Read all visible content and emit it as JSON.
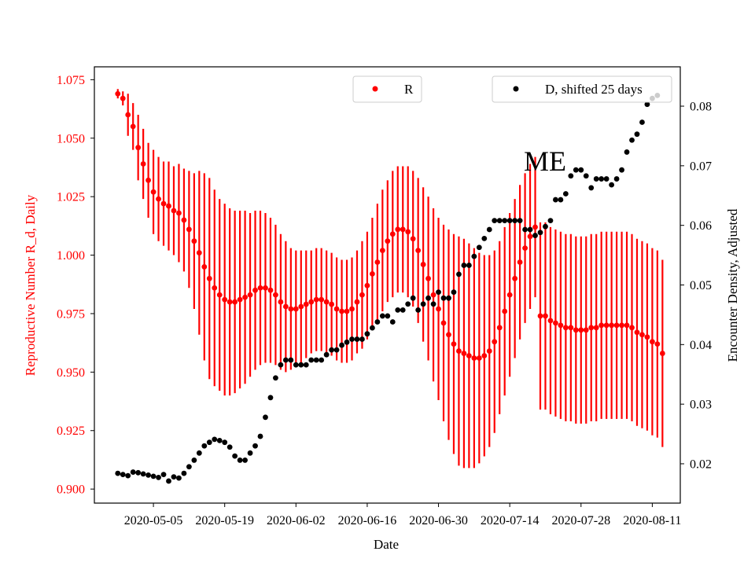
{
  "chart_data": {
    "type": "scatter",
    "xlabel": "Date",
    "ylabel_left": "Reproductive Number R_d, Daily",
    "ylabel_right": "Encounter Density, Adjusted",
    "annotation": "ME",
    "start_date": "2020-04-28",
    "x_tick_labels": [
      "2020-05-05",
      "2020-05-19",
      "2020-06-02",
      "2020-06-16",
      "2020-06-30",
      "2020-07-14",
      "2020-07-28",
      "2020-08-11"
    ],
    "x_tick_days": [
      7,
      21,
      35,
      49,
      63,
      77,
      91,
      105
    ],
    "xlim_days": [
      -4.6,
      110.5
    ],
    "ylim_left": [
      0.894,
      1.0805
    ],
    "y_ticks_left": [
      0.9,
      0.925,
      0.95,
      0.975,
      1.0,
      1.025,
      1.05,
      1.075
    ],
    "y_tick_labels_left": [
      "0.900",
      "0.925",
      "0.950",
      "0.975",
      "1.000",
      "1.025",
      "1.050",
      "1.075"
    ],
    "ylim_right": [
      0.0134,
      0.0866
    ],
    "y_ticks_right": [
      0.02,
      0.03,
      0.04,
      0.05,
      0.06,
      0.07,
      0.08
    ],
    "y_tick_labels_right": [
      "0.02",
      "0.03",
      "0.04",
      "0.05",
      "0.06",
      "0.07",
      "0.08"
    ],
    "legend_R": {
      "label": "R",
      "color": "#ff0000",
      "placement": "top-center"
    },
    "legend_D": {
      "label": "D, shifted 25 days",
      "color": "#000000",
      "placement": "top-right"
    },
    "colors": {
      "R": "#ff0000",
      "D": "#000000",
      "left_axis_text": "#ff0000"
    },
    "series_R": {
      "name": "R",
      "x_days": [
        0,
        1,
        2,
        3,
        4,
        5,
        6,
        7,
        8,
        9,
        10,
        11,
        12,
        13,
        14,
        15,
        16,
        17,
        18,
        19,
        20,
        21,
        22,
        23,
        24,
        25,
        26,
        27,
        28,
        29,
        30,
        31,
        32,
        33,
        34,
        35,
        36,
        37,
        38,
        39,
        40,
        41,
        42,
        43,
        44,
        45,
        46,
        47,
        48,
        49,
        50,
        51,
        52,
        53,
        54,
        55,
        56,
        57,
        58,
        59,
        60,
        61,
        62,
        63,
        64,
        65,
        66,
        67,
        68,
        69,
        70,
        71,
        72,
        73,
        74,
        75,
        76,
        77,
        78,
        79,
        80,
        81,
        82,
        83,
        84,
        85,
        86,
        87,
        88,
        89,
        90,
        91,
        92,
        93,
        94,
        95,
        96,
        97,
        98,
        99,
        100,
        101,
        102,
        103,
        104,
        105,
        106,
        107
      ],
      "y": [
        1.069,
        1.067,
        1.06,
        1.055,
        1.046,
        1.039,
        1.032,
        1.027,
        1.024,
        1.022,
        1.021,
        1.019,
        1.018,
        1.015,
        1.011,
        1.006,
        1.001,
        0.995,
        0.99,
        0.986,
        0.983,
        0.981,
        0.98,
        0.98,
        0.981,
        0.982,
        0.983,
        0.985,
        0.986,
        0.986,
        0.985,
        0.983,
        0.98,
        0.978,
        0.977,
        0.977,
        0.978,
        0.979,
        0.98,
        0.981,
        0.981,
        0.98,
        0.979,
        0.977,
        0.976,
        0.976,
        0.977,
        0.98,
        0.983,
        0.987,
        0.992,
        0.997,
        1.002,
        1.006,
        1.009,
        1.011,
        1.011,
        1.01,
        1.007,
        1.002,
        0.996,
        0.99,
        0.983,
        0.977,
        0.971,
        0.966,
        0.962,
        0.959,
        0.958,
        0.957,
        0.956,
        0.956,
        0.957,
        0.959,
        0.963,
        0.969,
        0.976,
        0.983,
        0.99,
        0.997,
        1.003,
        1.008,
        1.012,
        0.974,
        0.974,
        0.972,
        0.971,
        0.97,
        0.969,
        0.969,
        0.968,
        0.968,
        0.968,
        0.969,
        0.969,
        0.97,
        0.97,
        0.97,
        0.97,
        0.97,
        0.97,
        0.969,
        0.967,
        0.966,
        0.965,
        0.963,
        0.962,
        0.958
      ],
      "err": [
        0.002,
        0.003,
        0.009,
        0.01,
        0.014,
        0.015,
        0.016,
        0.018,
        0.018,
        0.018,
        0.019,
        0.019,
        0.021,
        0.022,
        0.025,
        0.029,
        0.035,
        0.04,
        0.043,
        0.042,
        0.041,
        0.041,
        0.04,
        0.039,
        0.038,
        0.037,
        0.035,
        0.034,
        0.033,
        0.032,
        0.031,
        0.03,
        0.029,
        0.028,
        0.026,
        0.025,
        0.024,
        0.023,
        0.022,
        0.022,
        0.022,
        0.022,
        0.022,
        0.022,
        0.022,
        0.022,
        0.022,
        0.022,
        0.023,
        0.023,
        0.024,
        0.025,
        0.026,
        0.026,
        0.027,
        0.027,
        0.027,
        0.028,
        0.029,
        0.031,
        0.033,
        0.035,
        0.037,
        0.039,
        0.042,
        0.045,
        0.047,
        0.049,
        0.049,
        0.048,
        0.047,
        0.045,
        0.043,
        0.041,
        0.039,
        0.037,
        0.036,
        0.035,
        0.034,
        0.033,
        0.032,
        0.031,
        0.03,
        0.04,
        0.04,
        0.04,
        0.04,
        0.04,
        0.04,
        0.04,
        0.04,
        0.04,
        0.04,
        0.04,
        0.04,
        0.04,
        0.04,
        0.04,
        0.04,
        0.04,
        0.04,
        0.04,
        0.04,
        0.04,
        0.04,
        0.04,
        0.04,
        0.04
      ]
    },
    "series_D": {
      "name": "D, shifted 25 days",
      "x_days": [
        0,
        1,
        2,
        3,
        4,
        5,
        6,
        7,
        8,
        9,
        10,
        11,
        12,
        13,
        14,
        15,
        16,
        17,
        18,
        19,
        20,
        21,
        22,
        23,
        24,
        25,
        26,
        27,
        28,
        29,
        30,
        31,
        32,
        33,
        34,
        35,
        36,
        37,
        38,
        39,
        40,
        41,
        42,
        43,
        44,
        45,
        46,
        47,
        48,
        49,
        50,
        51,
        52,
        53,
        54,
        55,
        56,
        57,
        58,
        59,
        60,
        61,
        62,
        63,
        64,
        65,
        66,
        67,
        68,
        69,
        70,
        71,
        72,
        73,
        74,
        75,
        76,
        77,
        78,
        79,
        80,
        81,
        82,
        83,
        84,
        85,
        86,
        87,
        88,
        89,
        90,
        91,
        92,
        93,
        94,
        95,
        96,
        97,
        98,
        99,
        100,
        101,
        102,
        103,
        104,
        105,
        106
      ],
      "y": [
        0.0184,
        0.0182,
        0.018,
        0.0186,
        0.0185,
        0.0183,
        0.0181,
        0.0179,
        0.0177,
        0.0182,
        0.0171,
        0.0178,
        0.0176,
        0.0184,
        0.0195,
        0.0206,
        0.0218,
        0.023,
        0.0236,
        0.0241,
        0.0239,
        0.0236,
        0.0228,
        0.0213,
        0.0206,
        0.0206,
        0.0218,
        0.023,
        0.0246,
        0.0278,
        0.0311,
        0.0344,
        0.0366,
        0.0374,
        0.0374,
        0.0366,
        0.0366,
        0.0366,
        0.0374,
        0.0374,
        0.0374,
        0.0383,
        0.0391,
        0.0391,
        0.0399,
        0.0404,
        0.0409,
        0.0409,
        0.0409,
        0.0418,
        0.0428,
        0.0438,
        0.0448,
        0.0448,
        0.0438,
        0.0458,
        0.0458,
        0.0468,
        0.0478,
        0.0458,
        0.0468,
        0.0478,
        0.0468,
        0.0488,
        0.0478,
        0.0478,
        0.0488,
        0.0518,
        0.0533,
        0.0533,
        0.0548,
        0.0563,
        0.0578,
        0.0593,
        0.0608,
        0.0608,
        0.0608,
        0.0608,
        0.0608,
        0.0608,
        0.0593,
        0.0593,
        0.0583,
        0.0588,
        0.0598,
        0.0608,
        0.0643,
        0.0643,
        0.0653,
        0.0683,
        0.0693,
        0.0693,
        0.0683,
        0.0663,
        0.0678,
        0.0678,
        0.0678,
        0.0668,
        0.0678,
        0.0693,
        0.0723,
        0.0743,
        0.0753,
        0.0773,
        0.0803,
        0.0813,
        0.0818
      ]
    }
  }
}
